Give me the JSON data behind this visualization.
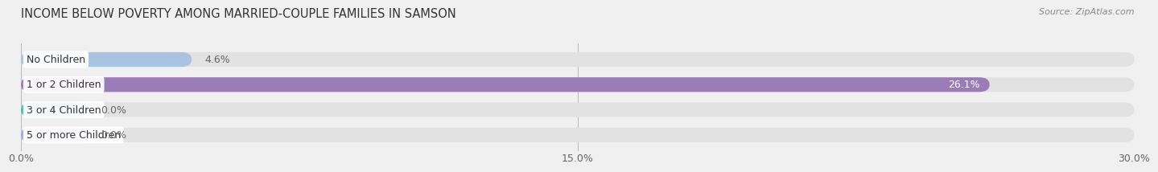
{
  "title": "INCOME BELOW POVERTY AMONG MARRIED-COUPLE FAMILIES IN SAMSON",
  "source": "Source: ZipAtlas.com",
  "categories": [
    "No Children",
    "1 or 2 Children",
    "3 or 4 Children",
    "5 or more Children"
  ],
  "values": [
    4.6,
    26.1,
    0.0,
    0.0
  ],
  "bar_colors": [
    "#a8c4e0",
    "#9b7bb8",
    "#4dbfb0",
    "#a8a8d8"
  ],
  "value_inside_color": [
    "#555555",
    "#ffffff",
    "#555555",
    "#555555"
  ],
  "xlim": [
    0,
    30.0
  ],
  "xtick_labels": [
    "0.0%",
    "15.0%",
    "30.0%"
  ],
  "xtick_vals": [
    0.0,
    15.0,
    30.0
  ],
  "background_color": "#f0f0f0",
  "bar_bg_color": "#e2e2e2",
  "title_fontsize": 10.5,
  "source_fontsize": 8,
  "label_fontsize": 9,
  "value_fontsize": 9,
  "bar_height": 0.58,
  "zero_bar_width": 1.8
}
